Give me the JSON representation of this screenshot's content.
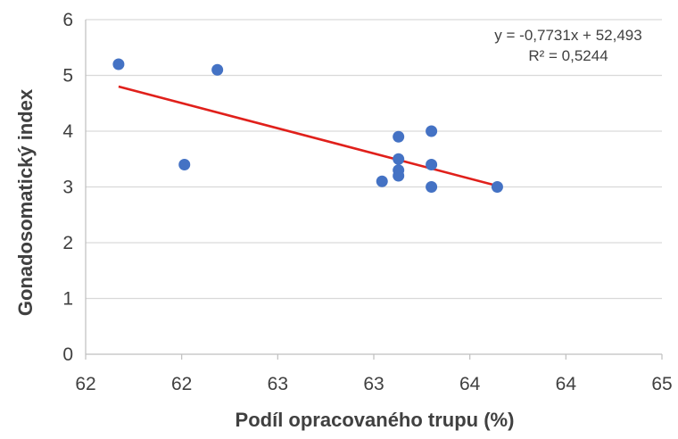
{
  "chart_data": {
    "type": "scatter",
    "title": "",
    "xlabel": "Podíl opracovaného trupu (%)",
    "ylabel": "Gonadosomatický index",
    "x_tick_labels": [
      "62",
      "62",
      "63",
      "63",
      "64",
      "64",
      "65"
    ],
    "y_tick_labels": [
      "0",
      "1",
      "2",
      "3",
      "4",
      "5",
      "6"
    ],
    "xlim": [
      61.5,
      65.0
    ],
    "ylim": [
      0,
      6
    ],
    "grid": "horizontal",
    "legend": "none",
    "series": [
      {
        "color": "#4472c4",
        "points": [
          {
            "x": 61.7,
            "y": 5.2
          },
          {
            "x": 62.1,
            "y": 3.4
          },
          {
            "x": 62.3,
            "y": 5.1
          },
          {
            "x": 63.3,
            "y": 3.1
          },
          {
            "x": 63.4,
            "y": 3.9
          },
          {
            "x": 63.4,
            "y": 3.5
          },
          {
            "x": 63.4,
            "y": 3.3
          },
          {
            "x": 63.4,
            "y": 3.2
          },
          {
            "x": 63.6,
            "y": 4.0
          },
          {
            "x": 63.6,
            "y": 3.4
          },
          {
            "x": 63.6,
            "y": 3.0
          },
          {
            "x": 64.0,
            "y": 3.0
          }
        ]
      }
    ],
    "trendline": {
      "color": "#e0201b",
      "x_start": 61.7,
      "y_start": 4.8,
      "x_end": 64.0,
      "y_end": 3.02,
      "equation": "y = -0,7731x + 52,493",
      "r_squared": "R² = 0,5244"
    },
    "colors": {
      "grid": "#d9d9d9",
      "axis": "#bfbfbf",
      "text": "#404040"
    }
  }
}
